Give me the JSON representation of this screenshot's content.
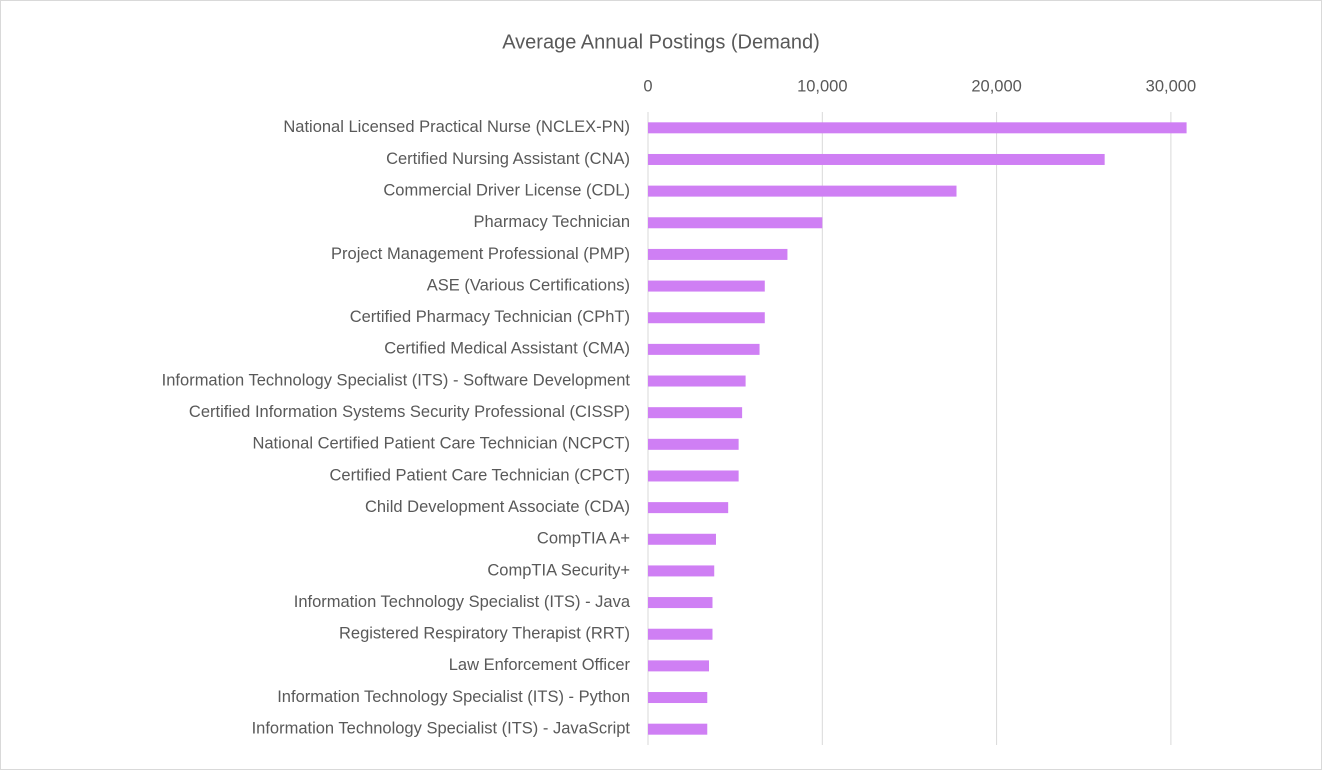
{
  "chart_data": {
    "type": "bar",
    "orientation": "horizontal",
    "title": "Average Annual Postings (Demand)",
    "categories": [
      "National Licensed Practical Nurse (NCLEX-PN)",
      "Certified Nursing Assistant (CNA)",
      "Commercial Driver License (CDL)",
      "Pharmacy Technician",
      "Project Management Professional (PMP)",
      "ASE (Various Certifications)",
      "Certified Pharmacy Technician (CPhT)",
      "Certified Medical Assistant (CMA)",
      "Information Technology Specialist (ITS) - Software Development",
      "Certified Information Systems Security Professional (CISSP)",
      "National Certified Patient Care Technician (NCPCT)",
      "Certified Patient Care Technician (CPCT)",
      "Child Development Associate (CDA)",
      "CompTIA A+",
      "CompTIA Security+",
      "Information Technology Specialist (ITS) - Java",
      "Registered Respiratory Therapist (RRT)",
      "Law Enforcement Officer",
      "Information Technology Specialist (ITS) - Python",
      "Information Technology Specialist (ITS) - JavaScript"
    ],
    "values": [
      30900,
      26200,
      17700,
      10000,
      8000,
      6700,
      6700,
      6400,
      5600,
      5400,
      5200,
      5200,
      4600,
      3900,
      3800,
      3700,
      3700,
      3500,
      3400,
      3400
    ],
    "color": "#cf7ff4",
    "xlim": [
      0,
      35000
    ],
    "xticks": [
      0,
      {
        "value": 10000,
        "label": "10,000"
      },
      {
        "value": 20000,
        "label": "20,000"
      },
      {
        "value": 30000,
        "label": "30,000"
      }
    ],
    "grid": true
  }
}
